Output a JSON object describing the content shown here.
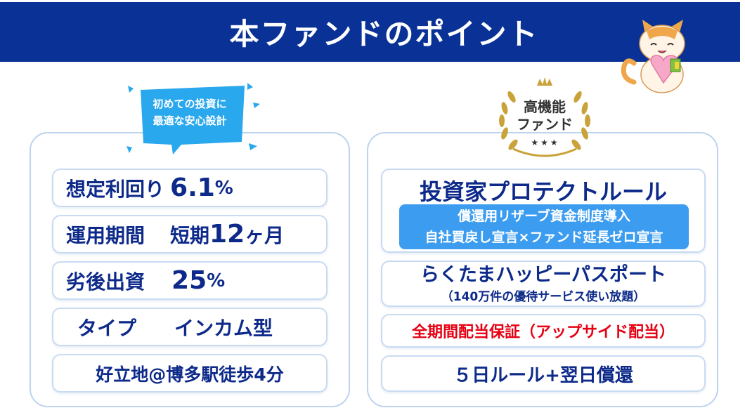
{
  "header": {
    "title": "本ファンドのポイント"
  },
  "left_badge": {
    "line1": "初めての投資に",
    "line2": "最適な安心設計"
  },
  "left_items": {
    "yield_label": "想定利回り",
    "yield_value": "6.1",
    "yield_unit": "%",
    "period_label": "運用期間",
    "period_prefix": "短期",
    "period_value": "12",
    "period_suffix": "ヶ月",
    "subordinate_label": "劣後出資",
    "subordinate_value": "25",
    "subordinate_unit": "%",
    "type_label": "タイプ",
    "type_value": "インカム型",
    "location": "好立地@博多駅徒歩4分"
  },
  "right_badge": {
    "line1": "高機能",
    "line2": "ファンド",
    "stars": "★★★"
  },
  "right_items": {
    "protect_title": "投資家プロテクトルール",
    "protect_line1": "償還用リザーブ資金制度導入",
    "protect_line2": "自社買戻し宣言×ファンド延長ゼロ宣言",
    "passport_title": "らくたまハッピーパスポート",
    "passport_sub": "（140万件の優待サービス使い放題）",
    "guarantee": "全期間配当保証（アップサイド配当）",
    "rule": "５日ルール+翌日償還"
  },
  "colors": {
    "header_bg": "#0a3296",
    "text_navy": "#0d2a8a",
    "bubble_cyan": "#2aa8ee",
    "highlight_blue": "#3b9cf0",
    "guarantee_red": "#e60012",
    "gold": "#c9a23a"
  },
  "icons": [
    "cat-mascot-icon",
    "speech-bubble-icon",
    "laurel-crown-icon"
  ]
}
